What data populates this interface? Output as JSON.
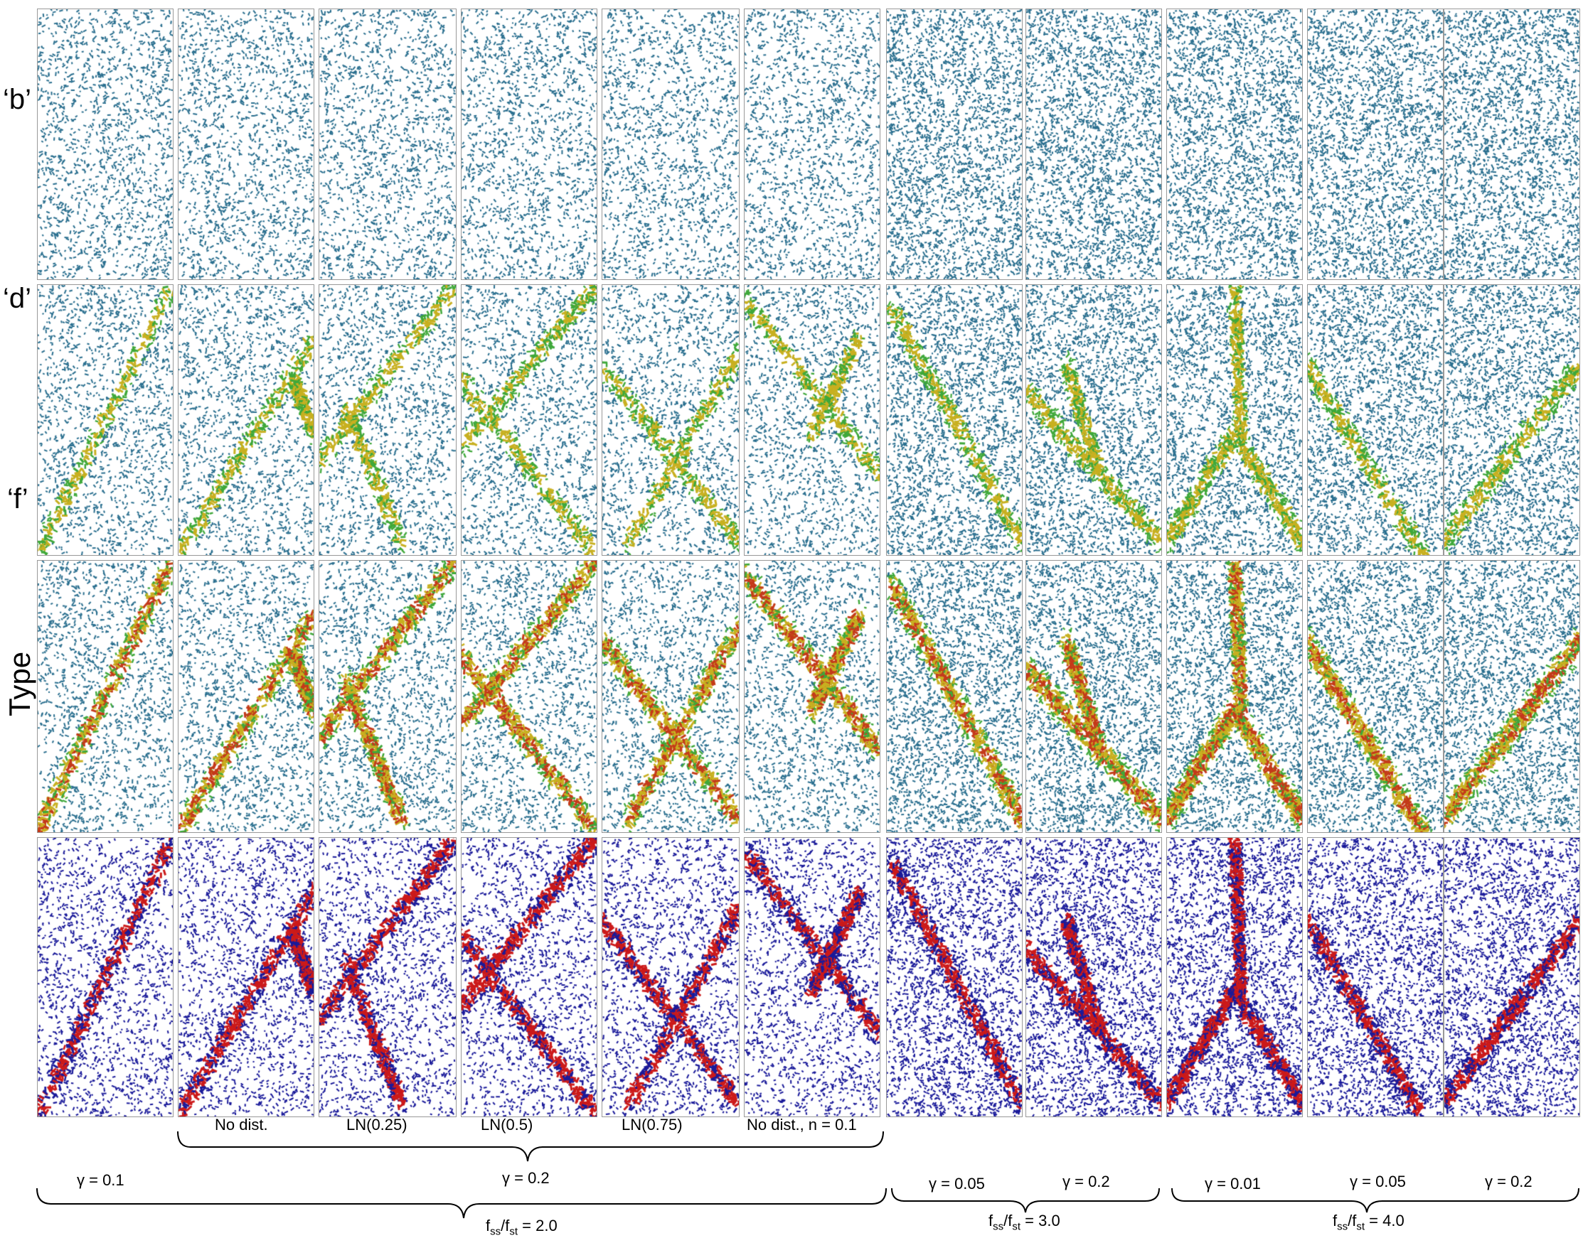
{
  "row_labels": [
    "‘b’",
    "‘d’",
    "‘f’",
    "Type"
  ],
  "method_captions": [
    "No dist.",
    "LN(0.25)",
    "LN(0.5)",
    "LN(0.75)",
    "No dist., n = 0.1"
  ],
  "gamma_labels": [
    "γ = 0.1",
    "γ = 0.2",
    "γ = 0.05",
    "γ = 0.2",
    "γ = 0.01",
    "γ = 0.05",
    "γ = 0.2"
  ],
  "ratio_labels": [
    {
      "prefix": "f",
      "sub1": "ss",
      "mid": "/f",
      "sub2": "st",
      "value": " = 2.0"
    },
    {
      "prefix": "f",
      "sub1": "ss",
      "mid": "/f",
      "sub2": "st",
      "value": " = 3.0"
    },
    {
      "prefix": "f",
      "sub1": "ss",
      "mid": "/f",
      "sub2": "st",
      "value": " = 4.0"
    }
  ],
  "colors": {
    "background": "#ffffff",
    "frame": "#999999",
    "low_damage": "#2a6f8f",
    "mid_damage": "#3fa83a",
    "high_damage": "#c8b020",
    "severe_damage": "#c43a1a",
    "type_tension": "#1a1a9a",
    "type_shear": "#cc1a1a"
  }
}
